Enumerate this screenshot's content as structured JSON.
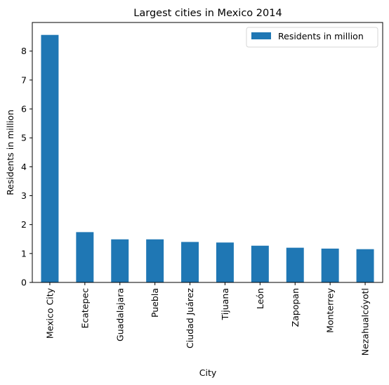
{
  "chart_data": {
    "type": "bar",
    "title": "Largest cities in Mexico 2014",
    "xlabel": "City",
    "ylabel": "Residents in million",
    "categories": [
      "Mexico City",
      "Ecatepec",
      "Guadalajara",
      "Puebla",
      "Ciudad Juárez",
      "Tijuana",
      "León",
      "Zapopan",
      "Monterrey",
      "Nezahualcóyotl"
    ],
    "series": [
      {
        "name": "Residents in million",
        "values": [
          8.56,
          1.74,
          1.49,
          1.49,
          1.4,
          1.38,
          1.27,
          1.2,
          1.17,
          1.15
        ]
      }
    ],
    "ylim": [
      0,
      8.99
    ],
    "yticks": [
      0,
      1,
      2,
      3,
      4,
      5,
      6,
      7,
      8
    ],
    "grid": false,
    "legend_position": "top-right",
    "bar_color": "#1f77b4"
  }
}
